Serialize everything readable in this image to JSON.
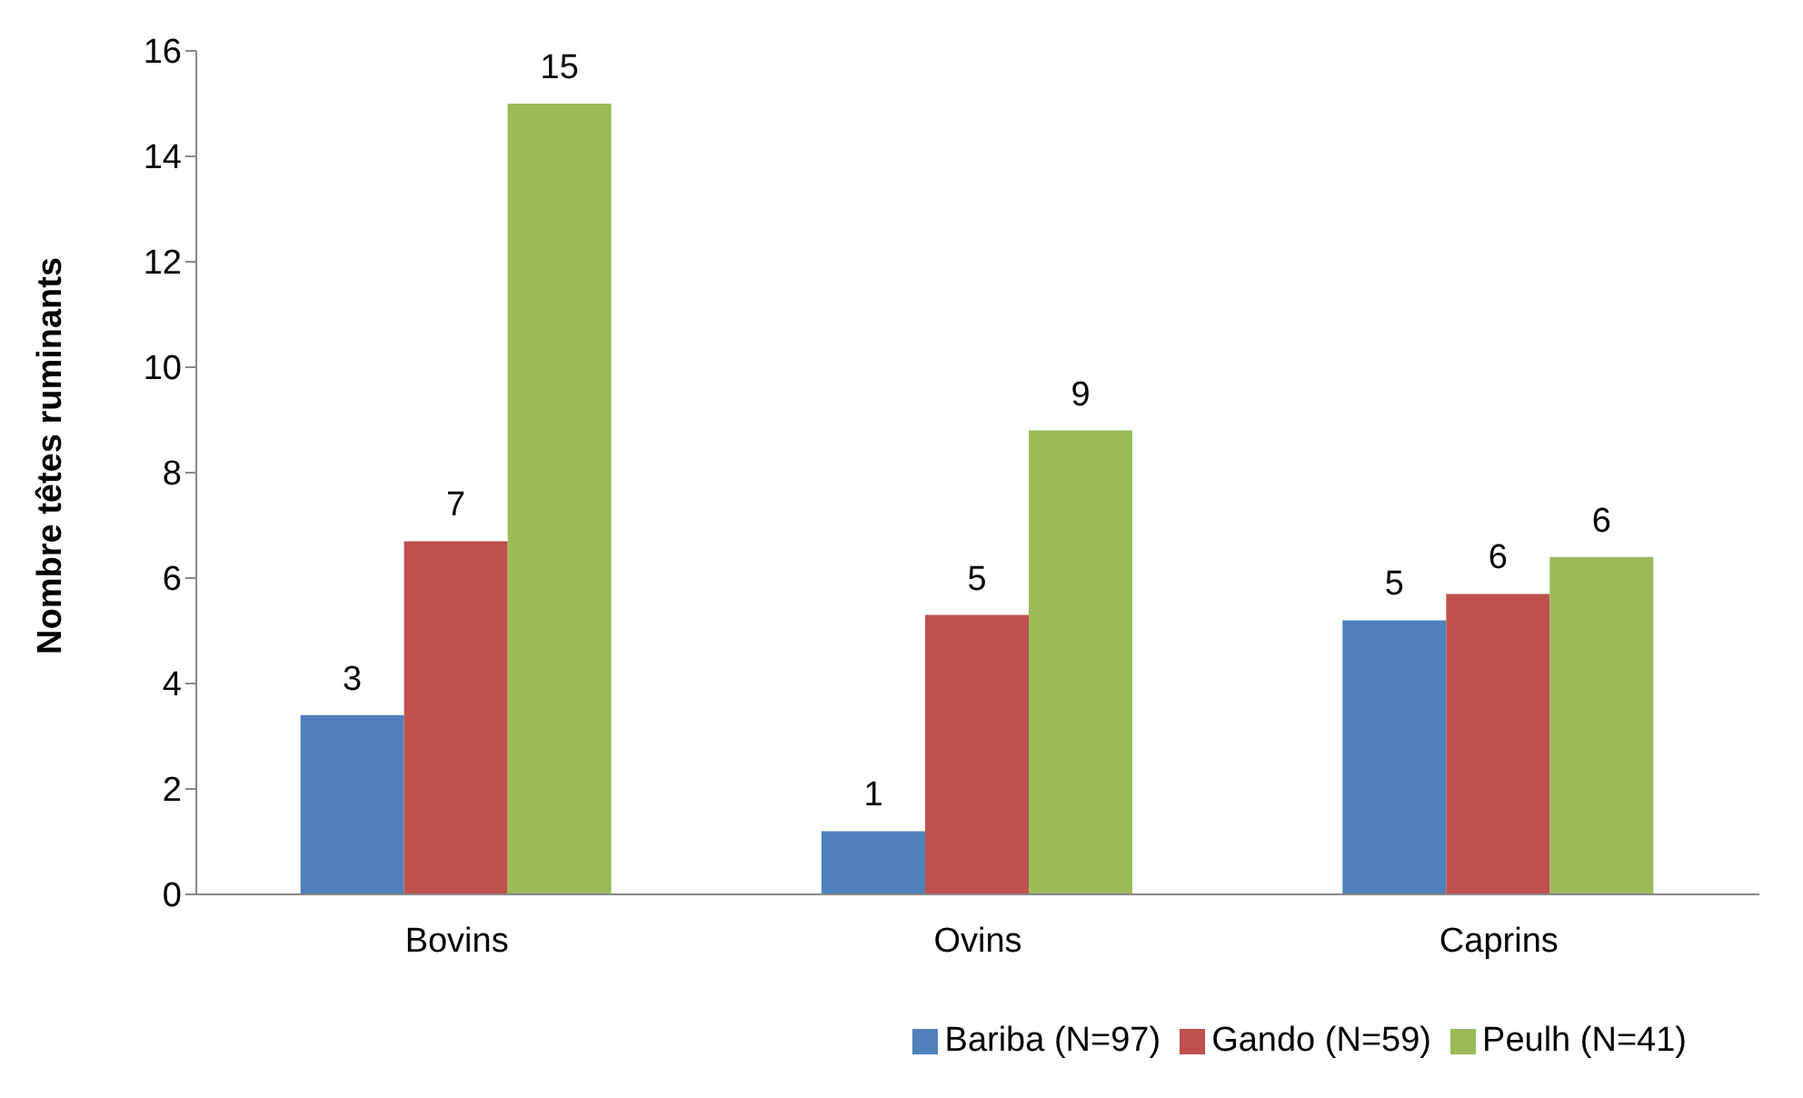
{
  "chart_data": {
    "type": "bar",
    "ylabel": "Nombre têtes ruminants",
    "categories": [
      "Bovins",
      "Ovins",
      "Caprins"
    ],
    "series": [
      {
        "name": "Bariba (N=97)",
        "color": "#4f81bd",
        "values": [
          3.4,
          1.2,
          5.2
        ],
        "value_labels": [
          "3",
          "1",
          "5"
        ]
      },
      {
        "name": "Gando (N=59)",
        "color": "#c0504d",
        "values": [
          6.7,
          5.3,
          5.7
        ],
        "value_labels": [
          "7",
          "5",
          "6"
        ]
      },
      {
        "name": "Peulh (N=41)",
        "color": "#9bbb59",
        "values": [
          15.0,
          8.8,
          6.4
        ],
        "value_labels": [
          "15",
          "9",
          "6"
        ]
      }
    ],
    "ylim": [
      0,
      16
    ],
    "yticks": [
      0,
      2,
      4,
      6,
      8,
      10,
      12,
      14,
      16
    ],
    "grid": false,
    "legend": "bottom right"
  }
}
